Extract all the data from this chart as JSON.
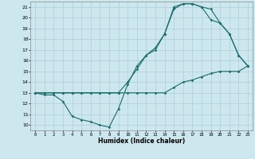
{
  "xlabel": "Humidex (Indice chaleur)",
  "ylabel": "",
  "bg_color": "#cce8ee",
  "grid_color": "#b0ccd8",
  "line_color": "#1a6b6b",
  "xlim": [
    -0.5,
    23.5
  ],
  "ylim": [
    9.5,
    21.5
  ],
  "xticks": [
    0,
    1,
    2,
    3,
    4,
    5,
    6,
    7,
    8,
    9,
    10,
    11,
    12,
    13,
    14,
    15,
    16,
    17,
    18,
    19,
    20,
    21,
    22,
    23
  ],
  "yticks": [
    10,
    11,
    12,
    13,
    14,
    15,
    16,
    17,
    18,
    19,
    20,
    21
  ],
  "line1_x": [
    0,
    1,
    2,
    3,
    4,
    5,
    6,
    7,
    8,
    9,
    10,
    11,
    12,
    13,
    14,
    15,
    16,
    17,
    18,
    19,
    20,
    21,
    22,
    23
  ],
  "line1_y": [
    13,
    13,
    13,
    13,
    13,
    13,
    13,
    13,
    13,
    13,
    13,
    13,
    13,
    13,
    13,
    13.5,
    14,
    14.2,
    14.5,
    14.8,
    15,
    15,
    15,
    15.5
  ],
  "line2_x": [
    0,
    1,
    2,
    3,
    4,
    5,
    6,
    7,
    8,
    9,
    10,
    11,
    12,
    13,
    14,
    15,
    16,
    17,
    18,
    19,
    20,
    21,
    22,
    23
  ],
  "line2_y": [
    13,
    12.8,
    12.8,
    12.2,
    10.8,
    10.5,
    10.3,
    10.0,
    9.8,
    11.5,
    13.8,
    15.5,
    16.5,
    17.2,
    18.5,
    20.8,
    21.3,
    21.3,
    21.0,
    20.8,
    19.5,
    18.5,
    16.5,
    15.5
  ],
  "line3_x": [
    0,
    1,
    2,
    3,
    4,
    5,
    6,
    7,
    8,
    9,
    10,
    11,
    12,
    13,
    14,
    15,
    16,
    17,
    18,
    19,
    20,
    21,
    22,
    23
  ],
  "line3_y": [
    13,
    13,
    13,
    13,
    13,
    13,
    13,
    13,
    13,
    13,
    14,
    15.2,
    16.5,
    17,
    18.5,
    21.0,
    21.3,
    21.3,
    21.0,
    19.8,
    19.5,
    18.5,
    16.5,
    15.5
  ]
}
